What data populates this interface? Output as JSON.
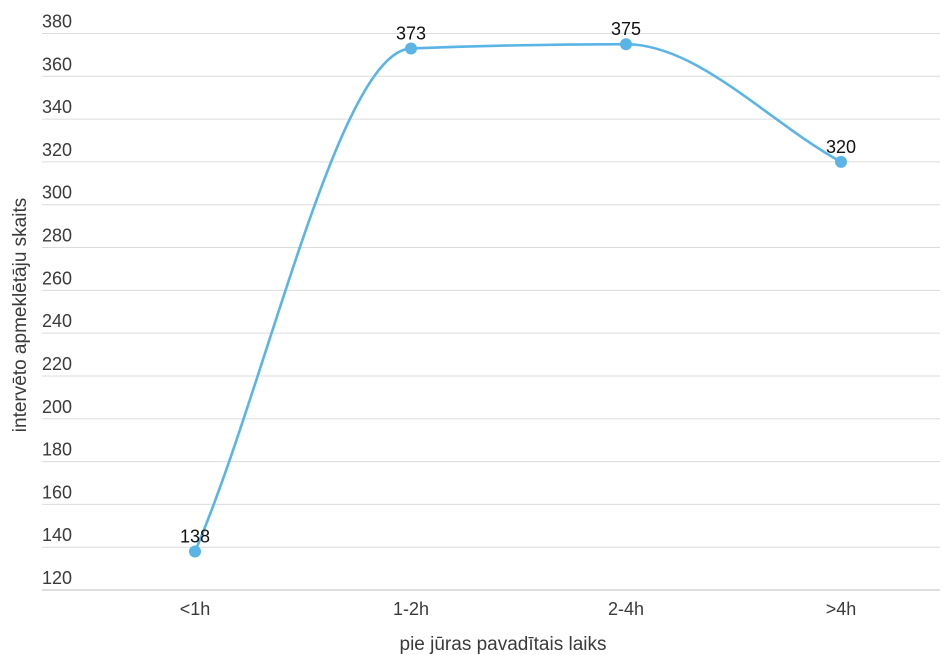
{
  "chart_data": {
    "type": "line",
    "title": "",
    "xlabel": "pie jūras pavadītais laiks",
    "ylabel": "intervēto apmeklētāju skaits",
    "categories": [
      "<1h",
      "1-2h",
      "2-4h",
      ">4h"
    ],
    "series": [
      {
        "values": [
          138,
          373,
          375,
          320
        ],
        "color": "#5ab4e5"
      }
    ],
    "ylim": [
      120,
      380
    ],
    "yticks": [
      120,
      140,
      160,
      180,
      200,
      220,
      240,
      260,
      280,
      300,
      320,
      340,
      360,
      380
    ],
    "grid": true,
    "smooth": true,
    "data_labels": true,
    "legend": "none"
  }
}
